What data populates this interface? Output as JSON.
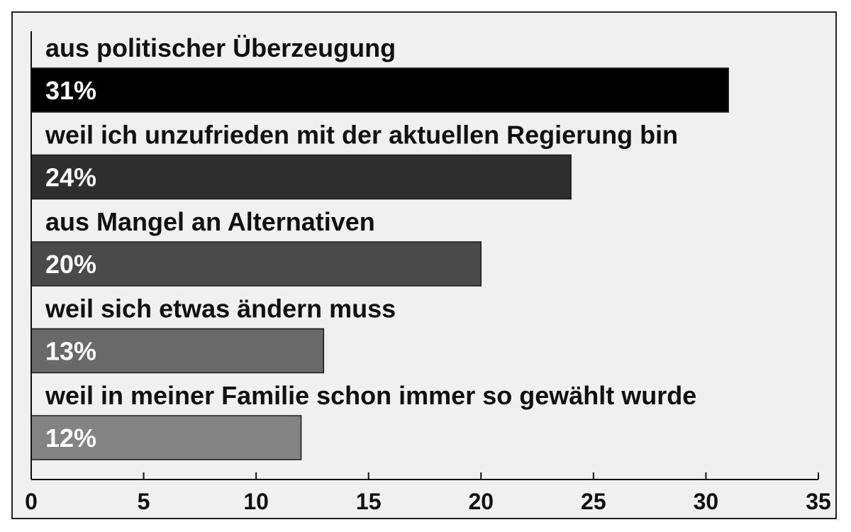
{
  "chart_data": {
    "type": "bar",
    "orientation": "horizontal",
    "categories": [
      "aus politischer Überzeugung",
      "weil ich unzufrieden mit der aktuellen Regierung bin",
      "aus Mangel an Alternativen",
      "weil sich etwas ändern muss",
      "weil in meiner Familie schon immer so gewählt wurde"
    ],
    "values": [
      31,
      24,
      20,
      13,
      12
    ],
    "value_labels": [
      "31%",
      "24%",
      "20%",
      "13%",
      "12%"
    ],
    "bar_colors": [
      "#000000",
      "#2e2e2e",
      "#4a4a4a",
      "#696969",
      "#838383"
    ],
    "xlim": [
      0,
      35
    ],
    "xticks": [
      0,
      5,
      10,
      15,
      20,
      25,
      30,
      35
    ],
    "xtick_labels": [
      "0",
      "5",
      "10",
      "15",
      "20",
      "25",
      "30",
      "35"
    ],
    "grid": false,
    "legend": "none"
  }
}
